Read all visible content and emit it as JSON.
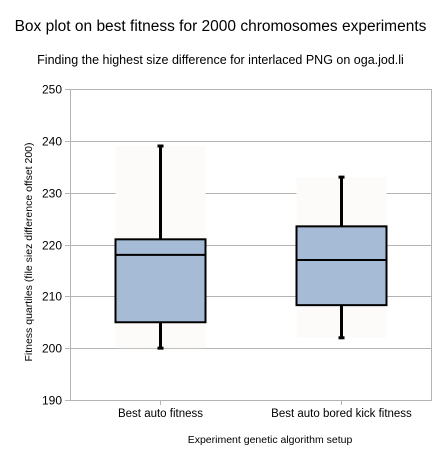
{
  "chart_data": {
    "type": "box",
    "title": "Box plot on best fitness for 2000 chromosomes experiments",
    "subtitle": "Finding the highest size difference for interlaced PNG on oga.jod.li",
    "xlabel": "Experiment genetic algorithm setup",
    "ylabel": "Fitness quartiles (file siez difference offset 200)",
    "ylim": [
      190,
      250
    ],
    "yticks": [
      190,
      200,
      210,
      220,
      230,
      240,
      250
    ],
    "grid": true,
    "categories": [
      "Best auto fitness",
      "Best auto bored kick fitness"
    ],
    "series": [
      {
        "min": 200,
        "q1": 205,
        "median": 218,
        "q3": 221,
        "max": 239
      },
      {
        "min": 202,
        "q1": 208.3,
        "median": 217,
        "q3": 223.5,
        "max": 233
      }
    ],
    "colors": {
      "box": "#a5bbd6",
      "range_band": "#fdfbf9",
      "grid": "#b3b3b3",
      "stroke": "#000000"
    }
  }
}
